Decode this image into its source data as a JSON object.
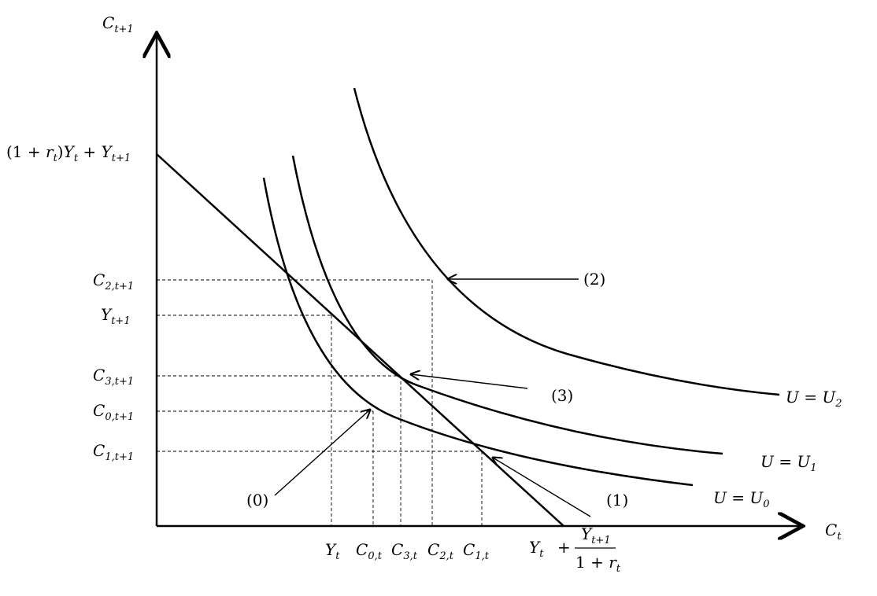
{
  "axes": {
    "x": {
      "main": "C",
      "sub": "t"
    },
    "y": {
      "main": "C",
      "sub": "t+1"
    }
  },
  "y_intercept": {
    "open": "(1 + ",
    "r": "r",
    "r_sub": "t",
    "close": ")",
    "Y1": "Y",
    "Y1_sub": "t",
    "plus": " + ",
    "Y2": "Y",
    "Y2_sub": "t+1"
  },
  "y_ticks": [
    {
      "main": "C",
      "sub": "2,t+1"
    },
    {
      "main": "Y",
      "sub": "t+1"
    },
    {
      "main": "C",
      "sub": "3,t+1"
    },
    {
      "main": "C",
      "sub": "0,t+1"
    },
    {
      "main": "C",
      "sub": "1,t+1"
    }
  ],
  "x_ticks": [
    {
      "main": "Y",
      "sub": "t"
    },
    {
      "main": "C",
      "sub": "0,t"
    },
    {
      "main": "C",
      "sub": "3,t"
    },
    {
      "main": "C",
      "sub": "2,t"
    },
    {
      "main": "C",
      "sub": "1,t"
    }
  ],
  "x_intercept": {
    "Y": "Y",
    "Y_sub": "t",
    "plus": "+",
    "num": "Y",
    "num_sub": "t+1",
    "den_prefix": "1 + ",
    "den_r": "r",
    "den_sub": "t"
  },
  "curves": [
    {
      "label_prefix": "U = ",
      "main": "U",
      "sub": "2"
    },
    {
      "label_prefix": "U = ",
      "main": "U",
      "sub": "1"
    },
    {
      "label_prefix": "U = ",
      "main": "U",
      "sub": "0"
    }
  ],
  "points": [
    {
      "label": "(2)"
    },
    {
      "label": "(3)"
    },
    {
      "label": "(0)"
    },
    {
      "label": "(1)"
    }
  ]
}
